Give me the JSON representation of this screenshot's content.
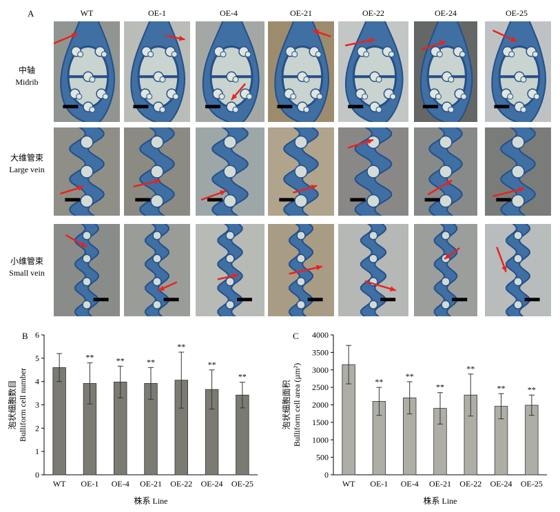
{
  "panel_a": {
    "letter": "A",
    "columns": [
      "WT",
      "OE-1",
      "OE-4",
      "OE-21",
      "OE-22",
      "OE-24",
      "OE-25"
    ],
    "rows": [
      {
        "zh": "中轴",
        "en": "Midrib",
        "kind": "midrib"
      },
      {
        "zh": "大维管束",
        "en": "Large vein",
        "kind": "large"
      },
      {
        "zh": "小维管束",
        "en": "Small vein",
        "kind": "small"
      }
    ],
    "colors": {
      "tissue": "#3f6fa3",
      "tissue_dark": "#254f86",
      "arrow": "#e8231f",
      "scale_bar": "#000000",
      "backgrounds": [
        [
          "#909591",
          "#babcb8",
          "#a4a8a4",
          "#9c8c6d",
          "#c2c6c4",
          "#656767",
          "#bfc2c4"
        ],
        [
          "#8f8f88",
          "#8b8b84",
          "#9ea7a8",
          "#b0a48c",
          "#8a8886",
          "#878a88",
          "#7a7c79"
        ],
        [
          "#8a8c8a",
          "#9a9c98",
          "#b8bab6",
          "#a89c84",
          "#b6b8b6",
          "#9c9e9c",
          "#b8bcbc"
        ]
      ]
    }
  },
  "chart_data": [
    {
      "panel": "B",
      "type": "bar",
      "categories": [
        "WT",
        "OE-1",
        "OE-4",
        "OE-21",
        "OE-22",
        "OE-24",
        "OE-25"
      ],
      "values": [
        4.6,
        3.92,
        3.98,
        3.92,
        4.06,
        3.66,
        3.42
      ],
      "errors": [
        0.6,
        0.88,
        0.68,
        0.68,
        1.2,
        0.84,
        0.55
      ],
      "significance": [
        "",
        "**",
        "**",
        "**",
        "**",
        "**",
        "**"
      ],
      "ylabel_zh": "泡状细胞数目",
      "ylabel_en": "Bulliform cell number",
      "xlabel": "株系 Line",
      "ylim": [
        0,
        6
      ],
      "yticks": [
        0,
        1,
        2,
        3,
        4,
        5,
        6
      ],
      "bar_color": "#7b7b73"
    },
    {
      "panel": "C",
      "type": "bar",
      "categories": [
        "WT",
        "OE-1",
        "OE-4",
        "OE-21",
        "OE-22",
        "OE-24",
        "OE-25"
      ],
      "values": [
        3150,
        2100,
        2200,
        1900,
        2280,
        1960,
        1990
      ],
      "errors": [
        550,
        400,
        460,
        450,
        600,
        360,
        290
      ],
      "significance": [
        "",
        "**",
        "**",
        "**",
        "**",
        "**",
        "**"
      ],
      "ylabel_zh": "泡状细胞面积",
      "ylabel_en": "Bulliform cell area (µm²)",
      "xlabel": "株系 Line",
      "ylim": [
        0,
        4000
      ],
      "yticks": [
        0,
        500,
        1000,
        1500,
        2000,
        2500,
        3000,
        3500,
        4000
      ],
      "bar_color": "#aeaea6"
    }
  ]
}
